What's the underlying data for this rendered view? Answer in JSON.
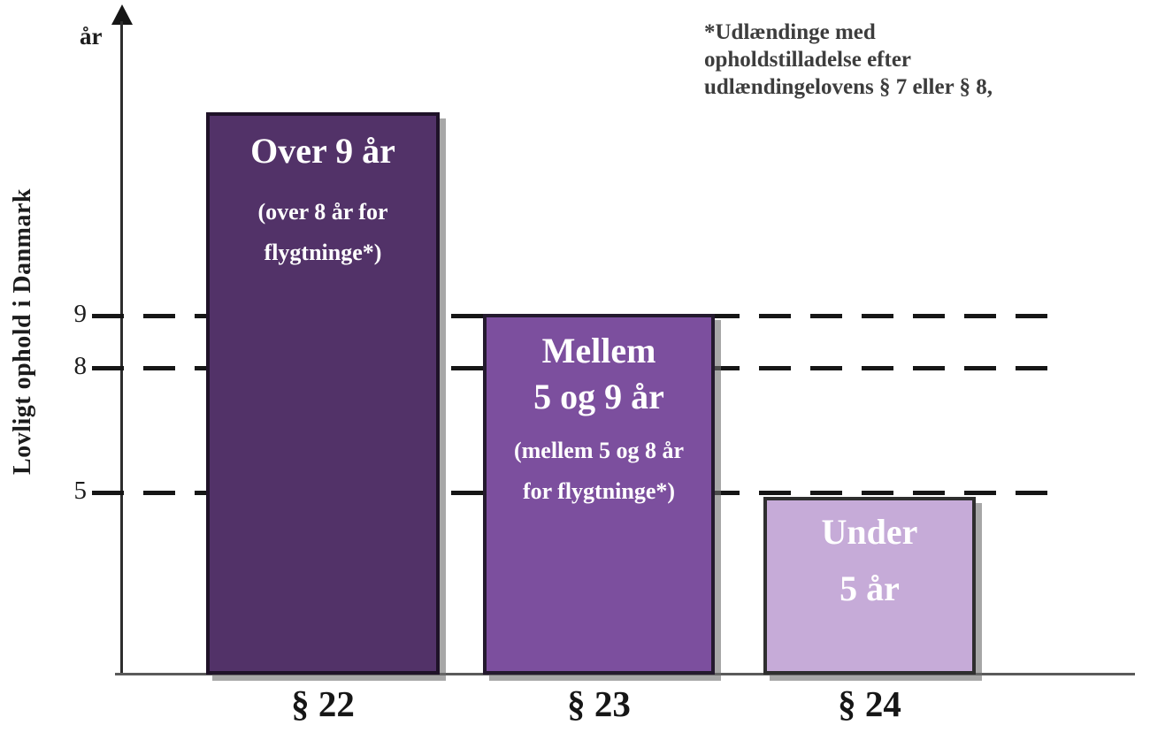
{
  "chart_data": {
    "type": "bar",
    "title": "",
    "categories": [
      "§ 22",
      "§ 23",
      "§ 24"
    ],
    "values": [
      13.4,
      9,
      5
    ],
    "values_note": "bar tops in years (schematic); § 22 bar extends above the 9-år line to mean 'over 9 år', § 23 reaches the 9-år line (mellem 5 og 9 år), § 24 reaches the 5-år line (under 5 år)",
    "bar_labels": [
      {
        "main": "Over 9 år",
        "sub": "(over 8 år for flygtninge*)"
      },
      {
        "main": "Mellem 5 og 9 år",
        "sub": "(mellem 5 og 8 år for flygtninge*)"
      },
      {
        "main": "Under 5 år",
        "sub": ""
      }
    ],
    "xlabel": "",
    "ylabel": "Lovligt ophold i Danmark",
    "y_unit": "år",
    "yticks": [
      9,
      8,
      5
    ],
    "gridlines": {
      "style": "dashed",
      "at": [
        9,
        8,
        5
      ]
    },
    "legend": null,
    "annotation": "*Udlændinge med opholdstilladelse efter udlændingelovens § 7 eller § 8,",
    "colors": {
      "bar_22": "#523268",
      "bar_23": "#7c4f9e",
      "bar_24": "#c6abd8",
      "text_on_bars": "#ffffff",
      "axis": "#2e2e2e"
    }
  },
  "y_axis": {
    "unit_label": "år",
    "title": "Lovligt ophold i Danmark",
    "ticks": [
      "9",
      "8",
      "5"
    ]
  },
  "bars": [
    {
      "category": "§ 22",
      "lines": [
        "Over 9 år",
        "(over 8 år for",
        "flygtninge*)"
      ],
      "color": "#523268"
    },
    {
      "category": "§ 23",
      "lines": [
        "Mellem",
        "5 og 9 år",
        "(mellem 5 og 8 år",
        "for flygtninge*)"
      ],
      "color": "#7c4f9e"
    },
    {
      "category": "§ 24",
      "lines": [
        "Under",
        "5 år"
      ],
      "color": "#c6abd8"
    }
  ],
  "annotation": {
    "lines": [
      "*Udlændinge med",
      "opholdstilladelse efter",
      "udlændingelovens § 7 eller § 8,"
    ]
  }
}
